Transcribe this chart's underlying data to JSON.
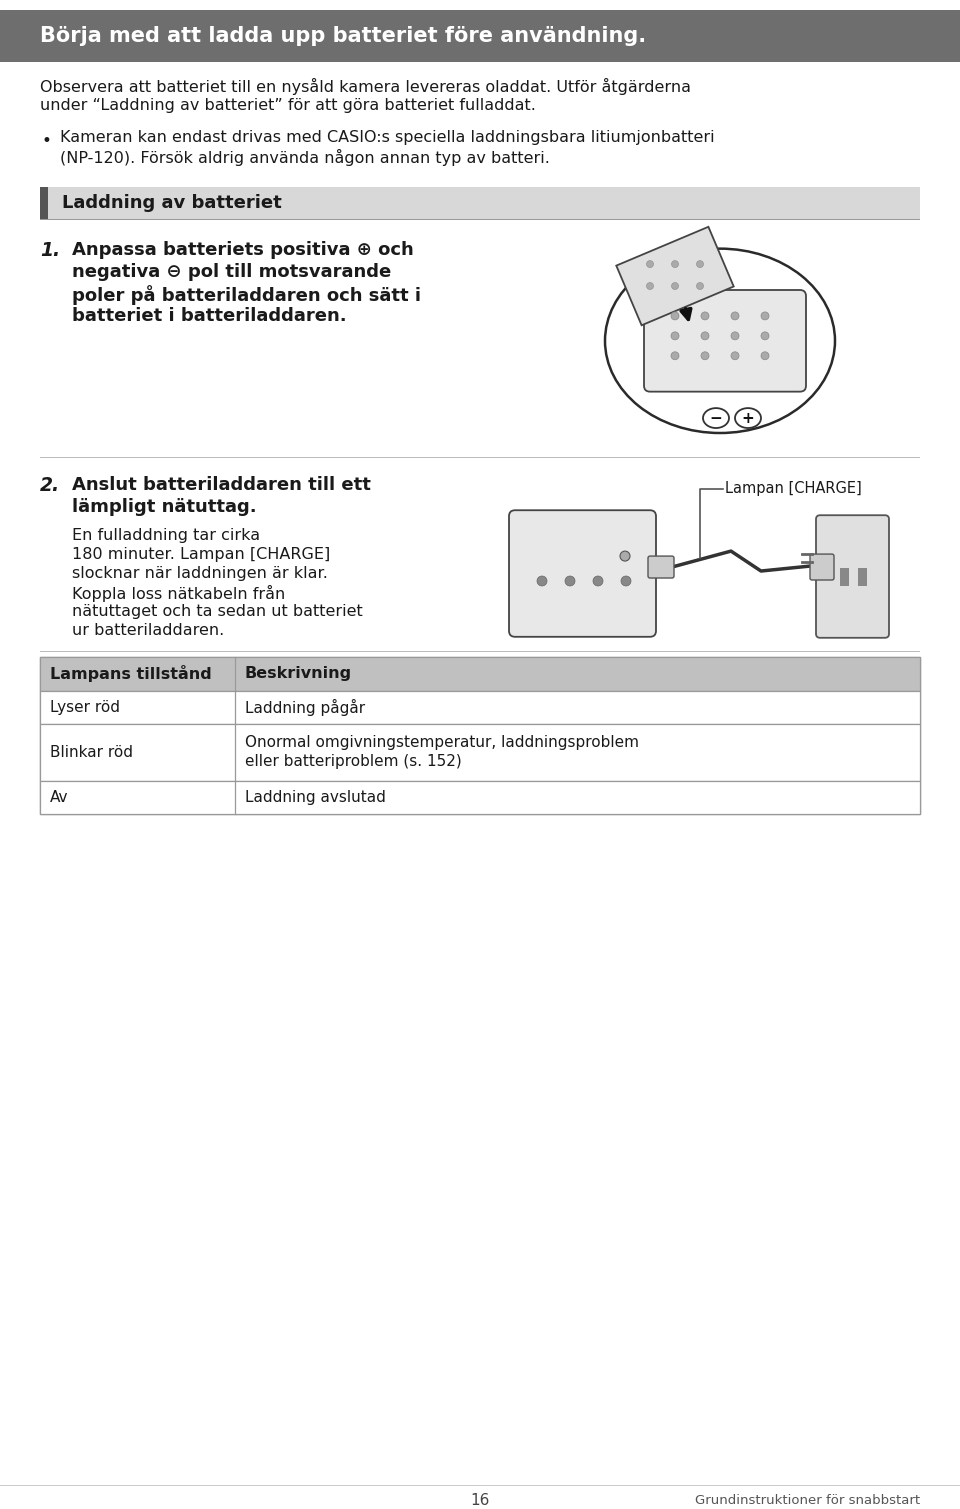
{
  "bg_color": "#ffffff",
  "header_bg": "#6e6e6e",
  "header_text_color": "#ffffff",
  "header_text": "Börja med att ladda upp batteriet före användning.",
  "section_header_text": "Laddning av batteriet",
  "section_header_bg": "#d8d8d8",
  "section_bar_color": "#555555",
  "body_text_color": "#1a1a1a",
  "para_lines": [
    "Observera att batteriet till en nysåld kamera levereras oladdat. Utför åtgärderna",
    "under “Laddning av batteriet” för att göra batteriet fulladdat."
  ],
  "bullet_lines": [
    "Kameran kan endast drivas med CASIO:s speciella laddningsbara litiumjonbatteri",
    "(NP-120). Försök aldrig använda någon annan typ av batteri."
  ],
  "step1_num": "1.",
  "step1_lines": [
    "Anpassa batteriets positiva ⊕ och",
    "negativa ⊖ pol till motsvarande",
    "poler på batteriladdaren och sätt i",
    "batteriet i batteriladdaren."
  ],
  "step2_num": "2.",
  "step2_bold_lines": [
    "Anslut batteriladdaren till ett",
    "lämpligt nätuttag."
  ],
  "step2_norm_lines": [
    "En fulladdning tar cirka",
    "180 minuter. Lampan [CHARGE]",
    "slocknar när laddningen är klar.",
    "Koppla loss nätkabeln från",
    "nätuttaget och ta sedan ut batteriet",
    "ur batteriladdaren."
  ],
  "lampan_label": "Lampan [CHARGE]",
  "table_header_col1": "Lampans tillstånd",
  "table_header_col2": "Beskrivning",
  "table_header_bg": "#c0c0c0",
  "table_row1_col1": "Lyser röd",
  "table_row1_col2": "Laddning pågår",
  "table_row2_col1": "Blinkar röd",
  "table_row2_col2_lines": [
    "Onormal omgivningstemperatur, laddningsproblem",
    "eller batteriproblem (s. 152)"
  ],
  "table_row3_col1": "Av",
  "table_row3_col2": "Laddning avslutad",
  "page_num": "16",
  "footer_right": "Grundinstruktioner för snabbstart",
  "table_border_color": "#999999",
  "divider_color": "#bbbbbb"
}
